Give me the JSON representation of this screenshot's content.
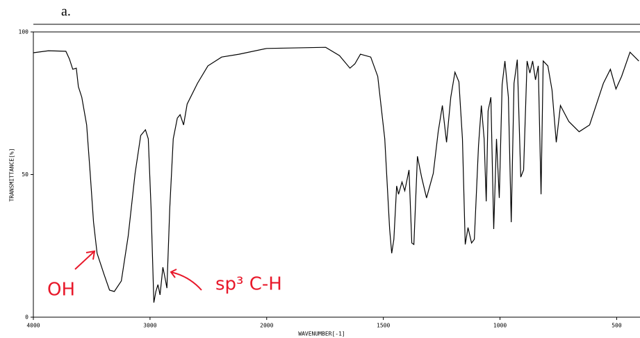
{
  "chart_data": {
    "type": "line",
    "title": "a.",
    "ylabel": "TRANSMITTANCE[%]",
    "xlabel": "WAVENUMBER[-1]",
    "annotations": [
      "OH",
      "sp³ C-H"
    ],
    "xlim": [
      4000,
      400
    ],
    "x_scale_break": 2000,
    "xticks": [
      4000,
      3000,
      2000,
      1500,
      1000,
      500
    ],
    "ylim": [
      0,
      100
    ],
    "yticks": [
      0,
      50,
      100
    ],
    "color": "#000000",
    "x": [
      4000,
      3870,
      3721,
      3691,
      3662,
      3632,
      3614,
      3585,
      3543,
      3513,
      3484,
      3454,
      3395,
      3347,
      3306,
      3246,
      3187,
      3128,
      3080,
      3039,
      3015,
      2991,
      2967,
      2950,
      2932,
      2914,
      2890,
      2872,
      2855,
      2831,
      2801,
      2766,
      2742,
      2712,
      2682,
      2593,
      2504,
      2386,
      2237,
      2000,
      1747,
      1688,
      1643,
      1622,
      1598,
      1554,
      1524,
      1494,
      1473,
      1464,
      1455,
      1443,
      1435,
      1420,
      1408,
      1390,
      1378,
      1369,
      1354,
      1336,
      1315,
      1286,
      1265,
      1247,
      1229,
      1211,
      1193,
      1176,
      1161,
      1149,
      1137,
      1122,
      1110,
      1092,
      1080,
      1068,
      1059,
      1051,
      1039,
      1027,
      1015,
      1003,
      991,
      979,
      964,
      952,
      940,
      926,
      911,
      899,
      884,
      872,
      860,
      848,
      836,
      824,
      815,
      795,
      777,
      759,
      741,
      705,
      661,
      616,
      557,
      527,
      503,
      479,
      443,
      405
    ],
    "values": [
      92.7,
      93.4,
      93.2,
      90.5,
      86.9,
      87.3,
      80.8,
      77.1,
      67.4,
      50.4,
      33.3,
      22.4,
      15.1,
      9.5,
      9.0,
      12.7,
      28.5,
      50.4,
      63.7,
      65.7,
      62.5,
      38.2,
      5.1,
      9.0,
      11.4,
      7.8,
      17.5,
      13.9,
      10.2,
      38.2,
      62.5,
      69.8,
      71.0,
      67.4,
      74.7,
      82.0,
      88.1,
      91.2,
      92.2,
      94.2,
      94.6,
      91.7,
      87.3,
      88.8,
      92.2,
      91.2,
      84.4,
      62.5,
      30.9,
      22.4,
      27.3,
      46.0,
      43.1,
      47.4,
      44.3,
      51.6,
      26.0,
      25.5,
      56.4,
      49.1,
      41.8,
      50.4,
      65.0,
      74.2,
      61.3,
      77.1,
      85.9,
      82.5,
      62.5,
      25.5,
      31.4,
      26.0,
      27.3,
      60.1,
      74.2,
      62.5,
      40.6,
      72.3,
      77.1,
      30.9,
      62.5,
      41.8,
      81.5,
      89.8,
      77.1,
      33.3,
      82.0,
      90.3,
      49.1,
      51.6,
      89.8,
      85.6,
      89.8,
      83.2,
      88.1,
      43.1,
      89.8,
      88.1,
      79.6,
      61.3,
      74.2,
      68.6,
      65.0,
      67.4,
      82.0,
      86.9,
      80.0,
      84.4,
      92.9,
      89.8
    ]
  }
}
